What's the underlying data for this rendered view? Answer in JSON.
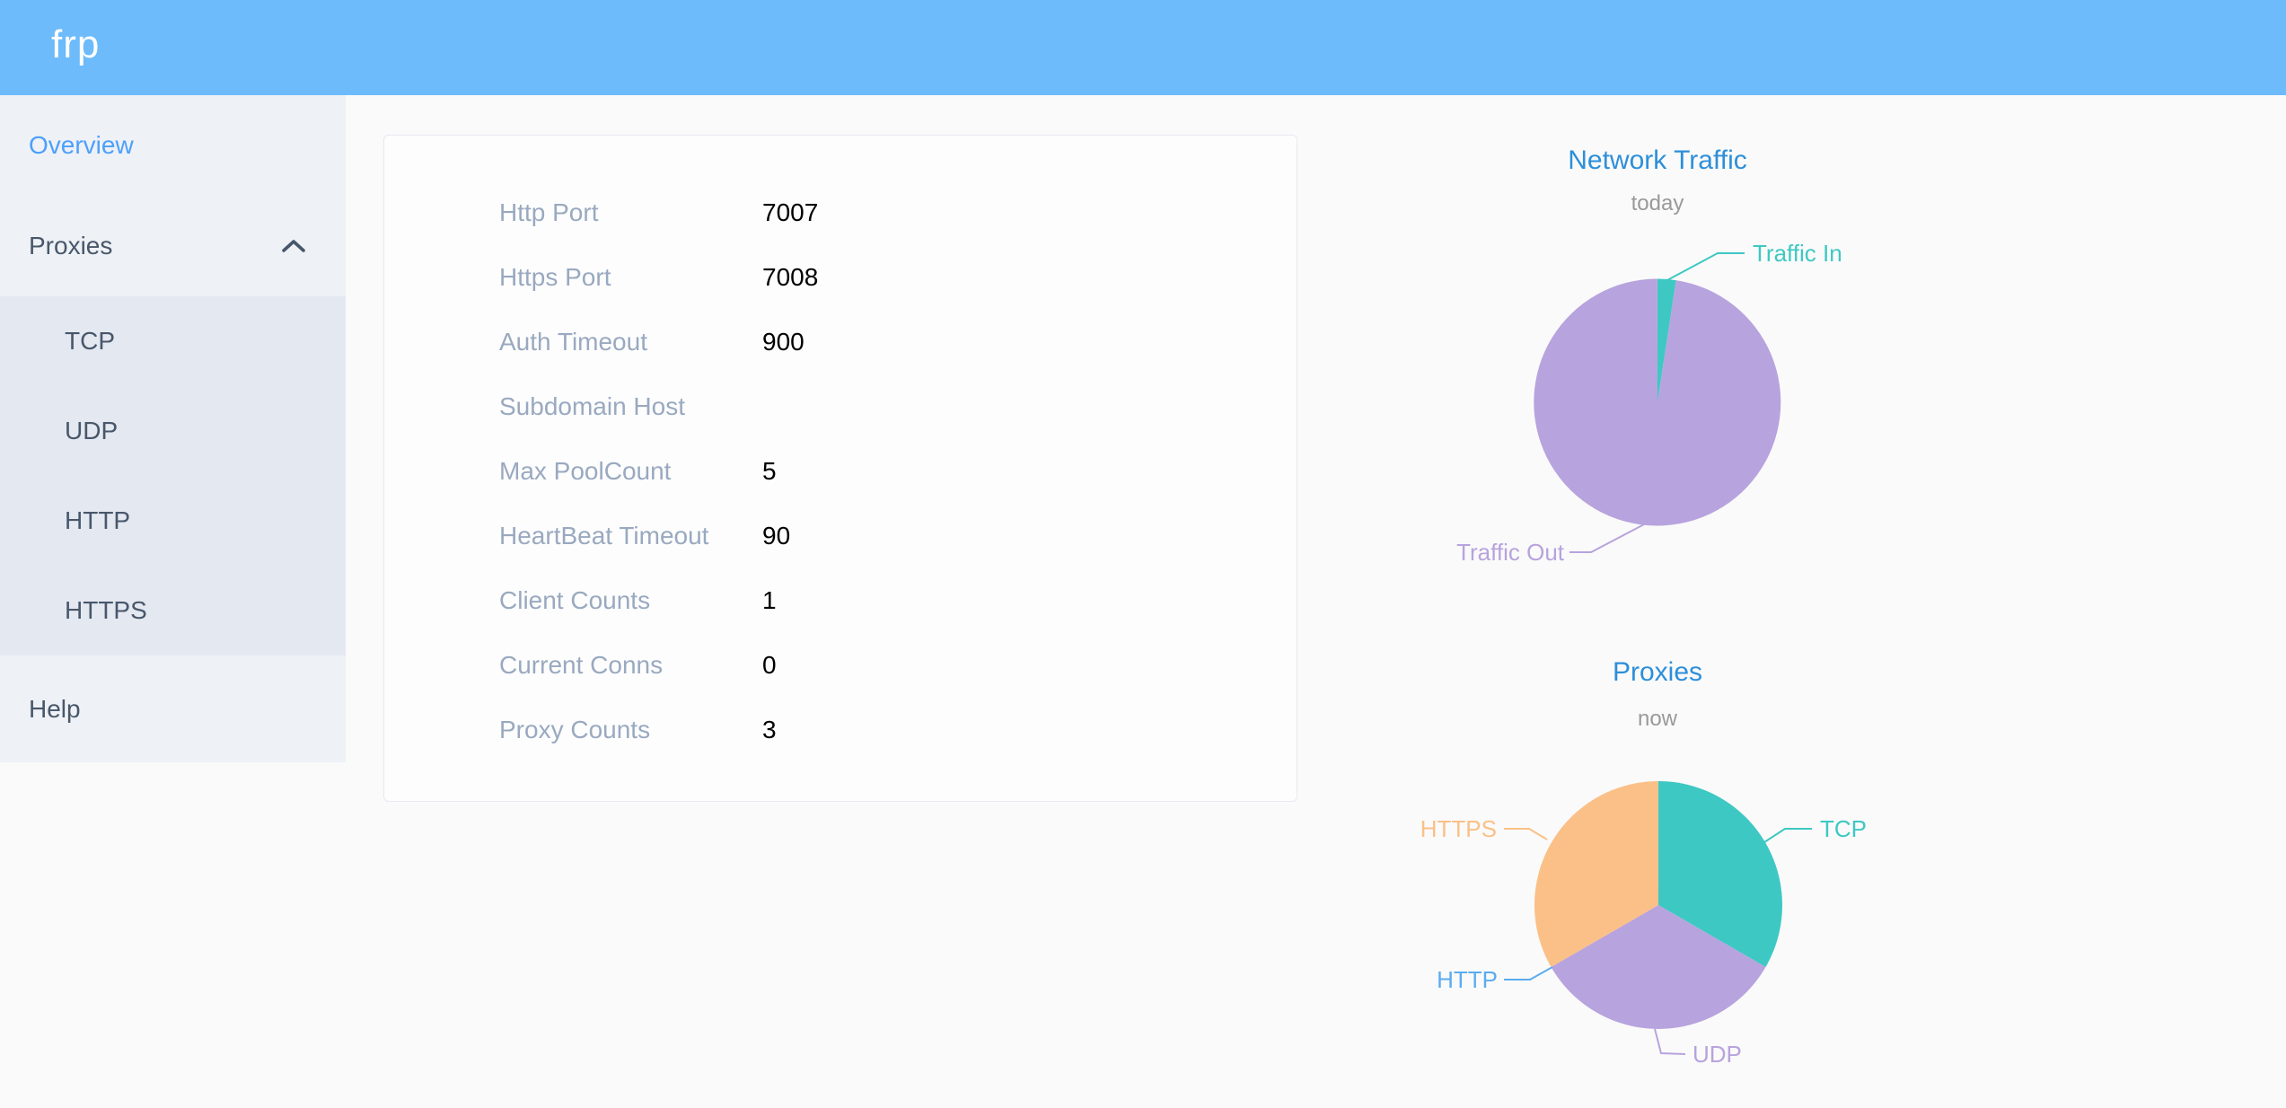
{
  "header": {
    "logo": "frp"
  },
  "sidebar": {
    "overview_label": "Overview",
    "proxies_label": "Proxies",
    "proxies_expanded": true,
    "proxies_children": [
      "TCP",
      "UDP",
      "HTTP",
      "HTTPS"
    ],
    "help_label": "Help"
  },
  "overview_table": {
    "rows": [
      {
        "label": "Http Port",
        "value": "7007"
      },
      {
        "label": "Https Port",
        "value": "7008"
      },
      {
        "label": "Auth Timeout",
        "value": "900"
      },
      {
        "label": "Subdomain Host",
        "value": ""
      },
      {
        "label": "Max PoolCount",
        "value": "5"
      },
      {
        "label": "HeartBeat Timeout",
        "value": "90"
      },
      {
        "label": "Client Counts",
        "value": "1"
      },
      {
        "label": "Current Conns",
        "value": "0"
      },
      {
        "label": "Proxy Counts",
        "value": "3"
      }
    ]
  },
  "chart_data": [
    {
      "type": "pie",
      "title": "Network Traffic",
      "subtitle": "today",
      "legend_position": "none",
      "series": [
        {
          "name": "Traffic In",
          "percent": 2.4,
          "color": "#3ec8c3"
        },
        {
          "name": "Traffic Out",
          "percent": 97.6,
          "color": "#b7a3de"
        }
      ]
    },
    {
      "type": "pie",
      "title": "Proxies",
      "subtitle": "now",
      "legend_position": "none",
      "series": [
        {
          "name": "TCP",
          "value": 1,
          "color": "#3ec8c3"
        },
        {
          "name": "UDP",
          "value": 1,
          "color": "#b7a3de"
        },
        {
          "name": "HTTP",
          "value": 0,
          "color": "#5bacf0"
        },
        {
          "name": "HTTPS",
          "value": 1,
          "color": "#fbc087"
        }
      ]
    }
  ],
  "colors": {
    "header_bg": "#6dbbfa",
    "sidebar_bg": "#eef1f6",
    "submenu_bg": "#e4e8f1",
    "menu_text": "#48576a",
    "active_menu_text": "#4da0fa",
    "chart_title": "#2d8fd9",
    "table_label": "#99a9bf",
    "table_value": "#000000"
  }
}
